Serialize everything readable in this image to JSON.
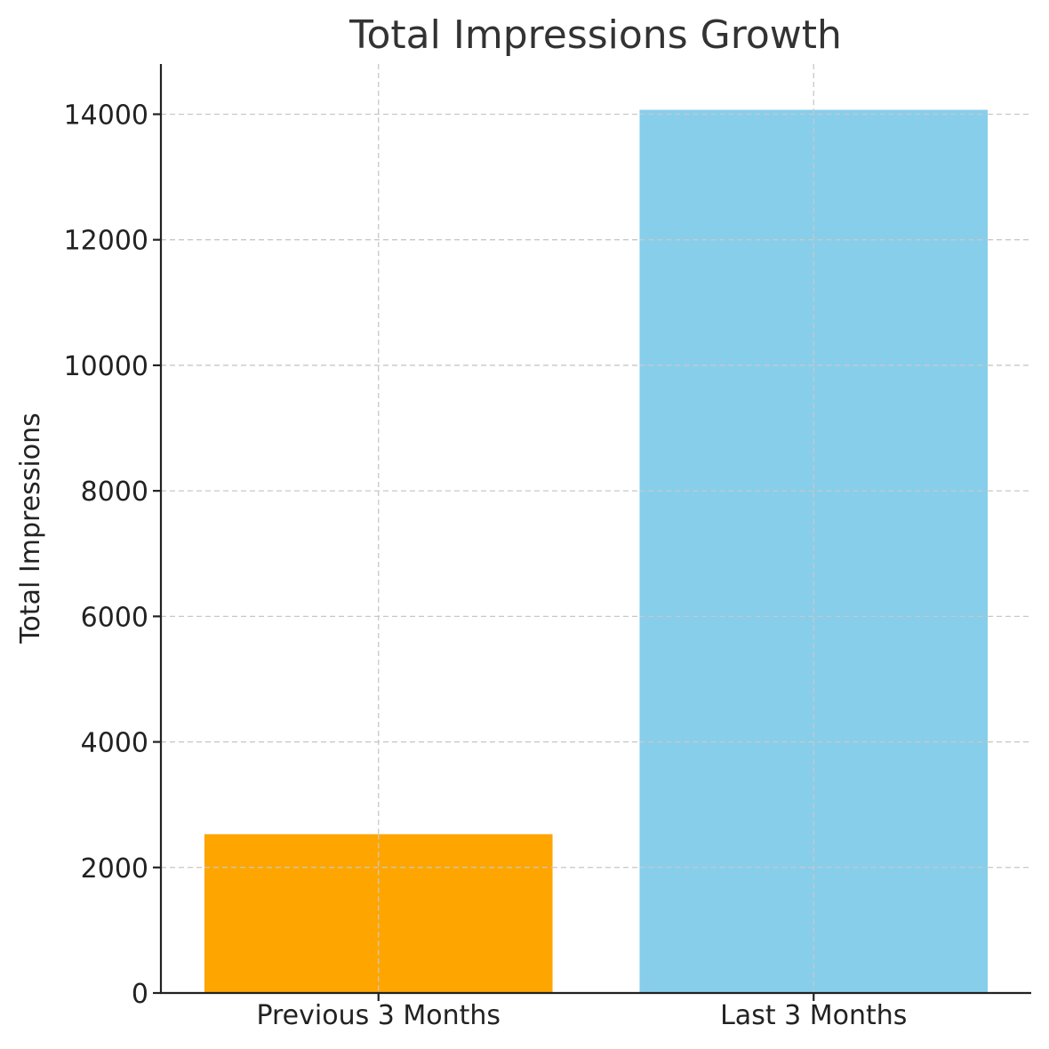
{
  "chart_data": {
    "type": "bar",
    "title": "Total Impressions Growth",
    "xlabel": "",
    "ylabel": "Total Impressions",
    "categories": [
      "Previous 3 Months",
      "Last 3 Months"
    ],
    "values": [
      2530,
      14070
    ],
    "colors": [
      "#ffa500",
      "#87ceeb"
    ],
    "ylim": [
      0,
      14800
    ],
    "yticks": [
      0,
      2000,
      4000,
      6000,
      8000,
      10000,
      12000,
      14000
    ],
    "ytick_labels": [
      "0",
      "2000",
      "4000",
      "6000",
      "8000",
      "10000",
      "12000",
      "14000"
    ],
    "grid": true,
    "legend": "none"
  }
}
